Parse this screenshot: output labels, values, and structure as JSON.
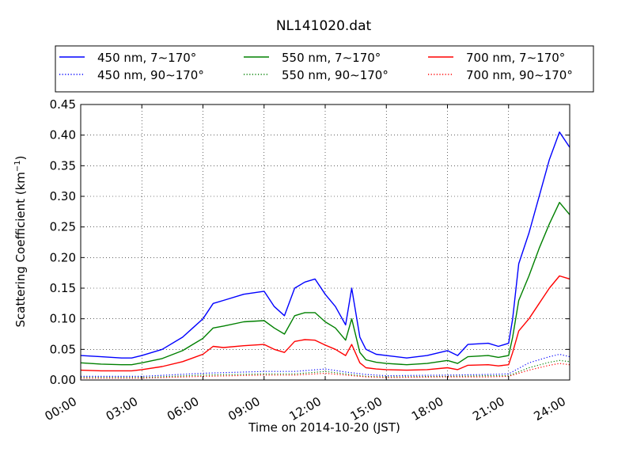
{
  "chart_data": {
    "type": "line",
    "title": "NL141020.dat",
    "xlabel": "Time on 2014-10-20 (JST)",
    "ylabel_main": "Scattering Coefficient (km",
    "ylabel_sup": "−1",
    "ylabel_end": ")",
    "xlim": [
      0,
      24
    ],
    "ylim": [
      0,
      0.45
    ],
    "grid": true,
    "legend_position": "top",
    "xticks": [
      {
        "value": 0,
        "label": "00:00"
      },
      {
        "value": 3,
        "label": "03:00"
      },
      {
        "value": 6,
        "label": "06:00"
      },
      {
        "value": 9,
        "label": "09:00"
      },
      {
        "value": 12,
        "label": "12:00"
      },
      {
        "value": 15,
        "label": "15:00"
      },
      {
        "value": 18,
        "label": "18:00"
      },
      {
        "value": 21,
        "label": "21:00"
      },
      {
        "value": 24,
        "label": "24:00"
      }
    ],
    "yticks": [
      {
        "value": 0,
        "label": "0.00"
      },
      {
        "value": 0.05,
        "label": "0.05"
      },
      {
        "value": 0.1,
        "label": "0.10"
      },
      {
        "value": 0.15,
        "label": "0.15"
      },
      {
        "value": 0.2,
        "label": "0.20"
      },
      {
        "value": 0.25,
        "label": "0.25"
      },
      {
        "value": 0.3,
        "label": "0.30"
      },
      {
        "value": 0.35,
        "label": "0.35"
      },
      {
        "value": 0.4,
        "label": "0.40"
      },
      {
        "value": 0.45,
        "label": "0.45"
      }
    ],
    "series": [
      {
        "name": "450 nm, 7∼170°",
        "color": "#0000ff",
        "style": "solid",
        "x": [
          0,
          1,
          2,
          2.5,
          3,
          4,
          5,
          5.5,
          6,
          6.5,
          7,
          8,
          9,
          9.5,
          10,
          10.5,
          11,
          11.5,
          12,
          12.5,
          13,
          13.3,
          13.7,
          14,
          14.5,
          15,
          16,
          17,
          18,
          18.5,
          19,
          20,
          20.5,
          21,
          21.2,
          21.5,
          22,
          22.5,
          23,
          23.5,
          24
        ],
        "y": [
          0.04,
          0.038,
          0.036,
          0.036,
          0.04,
          0.05,
          0.07,
          0.085,
          0.1,
          0.125,
          0.13,
          0.14,
          0.145,
          0.12,
          0.105,
          0.15,
          0.16,
          0.165,
          0.14,
          0.12,
          0.09,
          0.15,
          0.07,
          0.05,
          0.042,
          0.04,
          0.036,
          0.04,
          0.048,
          0.04,
          0.058,
          0.06,
          0.055,
          0.06,
          0.1,
          0.19,
          0.24,
          0.3,
          0.36,
          0.405,
          0.38
        ]
      },
      {
        "name": "450 nm, 90∼170°",
        "color": "#0000ff",
        "style": "dotted",
        "x": [
          0,
          3,
          6,
          9,
          10.5,
          12,
          13,
          14,
          15,
          18,
          20,
          21,
          22,
          23,
          23.5,
          24
        ],
        "y": [
          0.006,
          0.006,
          0.011,
          0.014,
          0.014,
          0.018,
          0.013,
          0.009,
          0.007,
          0.008,
          0.009,
          0.01,
          0.028,
          0.038,
          0.042,
          0.038
        ]
      },
      {
        "name": "550 nm, 7∼170°",
        "color": "#008000",
        "style": "solid",
        "x": [
          0,
          1,
          2,
          2.5,
          3,
          4,
          5,
          5.5,
          6,
          6.5,
          7,
          8,
          9,
          9.5,
          10,
          10.5,
          11,
          11.5,
          12,
          12.5,
          13,
          13.3,
          13.7,
          14,
          14.5,
          15,
          16,
          17,
          18,
          18.5,
          19,
          20,
          20.5,
          21,
          21.2,
          21.5,
          22,
          22.5,
          23,
          23.5,
          24
        ],
        "y": [
          0.028,
          0.026,
          0.025,
          0.025,
          0.028,
          0.035,
          0.048,
          0.058,
          0.068,
          0.085,
          0.088,
          0.095,
          0.097,
          0.085,
          0.075,
          0.105,
          0.11,
          0.11,
          0.095,
          0.085,
          0.065,
          0.1,
          0.045,
          0.033,
          0.029,
          0.027,
          0.025,
          0.027,
          0.032,
          0.027,
          0.038,
          0.04,
          0.037,
          0.04,
          0.07,
          0.13,
          0.17,
          0.215,
          0.255,
          0.29,
          0.27
        ]
      },
      {
        "name": "550 nm, 90∼170°",
        "color": "#008000",
        "style": "dotted",
        "x": [
          0,
          3,
          6,
          9,
          10.5,
          12,
          13,
          14,
          15,
          18,
          20,
          21,
          22,
          23,
          23.5,
          24
        ],
        "y": [
          0.004,
          0.004,
          0.008,
          0.01,
          0.01,
          0.014,
          0.01,
          0.006,
          0.005,
          0.006,
          0.007,
          0.007,
          0.02,
          0.029,
          0.032,
          0.03
        ]
      },
      {
        "name": "700 nm, 7∼170°",
        "color": "#ff0000",
        "style": "solid",
        "x": [
          0,
          1,
          2,
          2.5,
          3,
          4,
          5,
          5.5,
          6,
          6.5,
          7,
          8,
          9,
          9.5,
          10,
          10.5,
          11,
          11.5,
          12,
          12.5,
          13,
          13.3,
          13.7,
          14,
          14.5,
          15,
          16,
          17,
          18,
          18.5,
          19,
          20,
          20.5,
          21,
          21.2,
          21.5,
          22,
          22.5,
          23,
          23.5,
          24
        ],
        "y": [
          0.016,
          0.015,
          0.015,
          0.015,
          0.017,
          0.022,
          0.03,
          0.036,
          0.042,
          0.055,
          0.053,
          0.056,
          0.058,
          0.05,
          0.045,
          0.063,
          0.066,
          0.065,
          0.057,
          0.05,
          0.04,
          0.058,
          0.028,
          0.02,
          0.018,
          0.017,
          0.016,
          0.017,
          0.02,
          0.017,
          0.024,
          0.025,
          0.023,
          0.025,
          0.045,
          0.08,
          0.1,
          0.125,
          0.15,
          0.17,
          0.165
        ]
      },
      {
        "name": "700 nm, 90∼170°",
        "color": "#ff0000",
        "style": "dotted",
        "x": [
          0,
          3,
          6,
          9,
          10.5,
          12,
          13,
          14,
          15,
          18,
          20,
          21,
          22,
          23,
          23.5,
          24
        ],
        "y": [
          0.003,
          0.003,
          0.006,
          0.008,
          0.008,
          0.011,
          0.008,
          0.005,
          0.004,
          0.005,
          0.005,
          0.006,
          0.016,
          0.024,
          0.027,
          0.025
        ]
      }
    ]
  }
}
